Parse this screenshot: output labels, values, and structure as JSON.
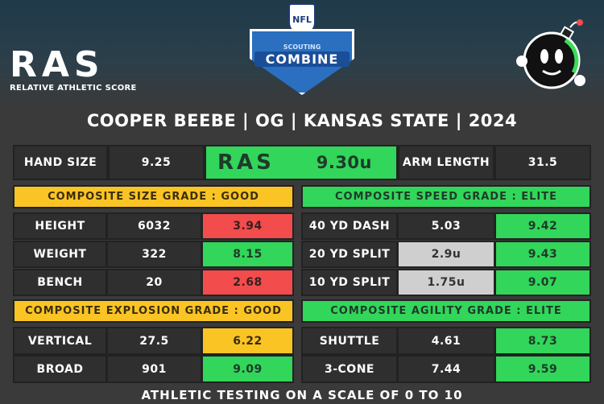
{
  "logo": {
    "mark": "RAS",
    "subtitle": "RELATIVE ATHLETIC SCORE"
  },
  "combine": {
    "league": "NFL",
    "line1": "SCOUTING",
    "line2": "COMBINE"
  },
  "title": "COOPER BEEBE | OG | KANSAS STATE | 2024",
  "top": {
    "hand_label": "HAND SIZE",
    "hand_value": "9.25",
    "ras_mark": "RAS",
    "ras_score": "9.30u",
    "arm_label": "ARM LENGTH",
    "arm_value": "31.5"
  },
  "size": {
    "header": "COMPOSITE SIZE GRADE : GOOD",
    "rows": [
      {
        "label": "HEIGHT",
        "value": "6032",
        "score": "3.94"
      },
      {
        "label": "WEIGHT",
        "value": "322",
        "score": "8.15"
      },
      {
        "label": "BENCH",
        "value": "20",
        "score": "2.68"
      }
    ]
  },
  "explosion": {
    "header": "COMPOSITE EXPLOSION GRADE : GOOD",
    "rows": [
      {
        "label": "VERTICAL",
        "value": "27.5",
        "score": "6.22"
      },
      {
        "label": "BROAD",
        "value": "901",
        "score": "9.09"
      }
    ]
  },
  "speed": {
    "header": "COMPOSITE SPEED GRADE : ELITE",
    "rows": [
      {
        "label": "40 YD DASH",
        "value": "5.03",
        "score": "9.42"
      },
      {
        "label": "20 YD SPLIT",
        "value": "2.9u",
        "score": "9.43"
      },
      {
        "label": "10 YD SPLIT",
        "value": "1.75u",
        "score": "9.07"
      }
    ]
  },
  "agility": {
    "header": "COMPOSITE AGILITY GRADE : ELITE",
    "rows": [
      {
        "label": "SHUTTLE",
        "value": "4.61",
        "score": "8.73"
      },
      {
        "label": "3-CONE",
        "value": "7.44",
        "score": "9.59"
      }
    ]
  },
  "footer": "ATHLETIC TESTING ON A SCALE OF 0 TO 10",
  "colors": {
    "green": "#32d65a",
    "red": "#f24c4c",
    "yellow": "#fbc425",
    "gray": "#cfcfcf",
    "dark": "#2f2f2f"
  }
}
